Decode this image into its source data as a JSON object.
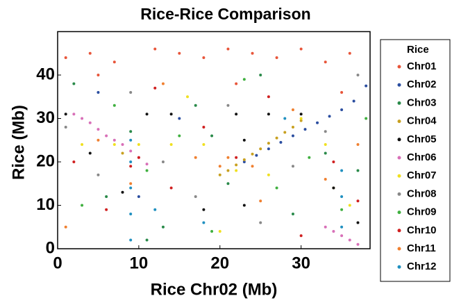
{
  "chart_data": {
    "type": "scatter",
    "title": "Rice-Rice Comparison",
    "x_label": "Rice Chr02 (Mb)",
    "y_label": "Rice (Mb)",
    "legend_title": "Rice",
    "legend": "right",
    "xlim": [
      0,
      38.5
    ],
    "ylim": [
      0,
      50
    ],
    "xticks": [
      0,
      10,
      20,
      30
    ],
    "yticks": [
      0,
      10,
      20,
      30,
      40
    ],
    "grid": false,
    "series": [
      {
        "name": "Chr01",
        "color": "#e8553a",
        "x": [
          1,
          4,
          7,
          12,
          15,
          18,
          21,
          24,
          27,
          30,
          33,
          36,
          5,
          22,
          35
        ],
        "values": [
          44,
          45,
          43,
          46,
          45,
          44,
          46,
          45,
          44,
          46,
          43,
          45,
          40,
          38,
          36
        ]
      },
      {
        "name": "Chr02",
        "color": "#2b4ea0",
        "x": [
          23,
          24.5,
          26,
          27.5,
          29,
          30.5,
          32,
          33.5,
          35,
          36.5,
          38,
          5,
          15,
          10
        ],
        "values": [
          20,
          21.5,
          23,
          24.5,
          26,
          27.5,
          29,
          30.5,
          32,
          34,
          37.5,
          36,
          30,
          12
        ]
      },
      {
        "name": "Chr03",
        "color": "#2a8a4a",
        "x": [
          2,
          6,
          9,
          13,
          17,
          21,
          25,
          29,
          33,
          37,
          11,
          19
        ],
        "values": [
          38,
          12,
          27,
          5,
          33,
          15,
          40,
          8,
          22,
          18,
          2,
          26
        ]
      },
      {
        "name": "Chr04",
        "color": "#c8a020",
        "x": [
          20,
          21,
          22,
          23,
          24,
          25,
          26,
          27,
          28,
          29,
          30,
          8,
          34
        ],
        "values": [
          17,
          18,
          19.3,
          20.5,
          21.8,
          23,
          24.3,
          25.5,
          26.8,
          28,
          29.5,
          22,
          14
        ]
      },
      {
        "name": "Chr05",
        "color": "#111111",
        "x": [
          1,
          4,
          8,
          11,
          14,
          18,
          22,
          26,
          30,
          34,
          37,
          23,
          23
        ],
        "values": [
          31,
          22,
          13,
          31,
          31,
          9,
          31,
          31,
          31,
          14,
          6,
          25,
          10
        ]
      },
      {
        "name": "Chr06",
        "color": "#d870b8",
        "x": [
          2,
          3,
          4,
          5,
          6,
          7,
          8,
          9,
          10,
          11,
          33,
          34,
          35,
          36,
          37
        ],
        "values": [
          31,
          30,
          29,
          27.5,
          26,
          25,
          24,
          22.5,
          21,
          19.5,
          5,
          4,
          3,
          2,
          1
        ]
      },
      {
        "name": "Chr07",
        "color": "#f0e020",
        "x": [
          3,
          7,
          10,
          14,
          18,
          22,
          26,
          30,
          33,
          36,
          16,
          20
        ],
        "values": [
          24,
          24,
          24,
          24,
          24,
          18,
          17,
          30,
          24,
          10,
          35,
          4
        ]
      },
      {
        "name": "Chr08",
        "color": "#888888",
        "x": [
          1,
          5,
          9,
          13,
          17,
          21,
          25,
          29,
          33,
          37
        ],
        "values": [
          28,
          17,
          36,
          20,
          12,
          33,
          6,
          19,
          27,
          40
        ]
      },
      {
        "name": "Chr09",
        "color": "#40b040",
        "x": [
          3,
          7,
          11,
          15,
          19,
          23,
          27,
          31,
          35,
          38
        ],
        "values": [
          10,
          33,
          18,
          26,
          4,
          39,
          14,
          21,
          9,
          30
        ]
      },
      {
        "name": "Chr10",
        "color": "#d02020",
        "x": [
          2,
          6,
          10,
          14,
          18,
          22,
          26,
          30,
          34,
          37,
          9,
          12
        ],
        "values": [
          20,
          9,
          21,
          14,
          28,
          21,
          35,
          3,
          20,
          11,
          19,
          37
        ]
      },
      {
        "name": "Chr11",
        "color": "#f08030",
        "x": [
          1,
          5,
          9,
          13,
          17,
          21,
          25,
          29,
          33,
          37,
          20,
          24
        ],
        "values": [
          5,
          25,
          15,
          38,
          21,
          21,
          11,
          32,
          16,
          24,
          19,
          19
        ]
      },
      {
        "name": "Chr12",
        "color": "#2090c0",
        "x": [
          9,
          9,
          9,
          9,
          9,
          35,
          35,
          35,
          12,
          18,
          28
        ],
        "values": [
          2,
          8,
          14,
          20,
          25,
          5,
          12,
          18,
          9,
          6,
          30
        ]
      }
    ]
  }
}
